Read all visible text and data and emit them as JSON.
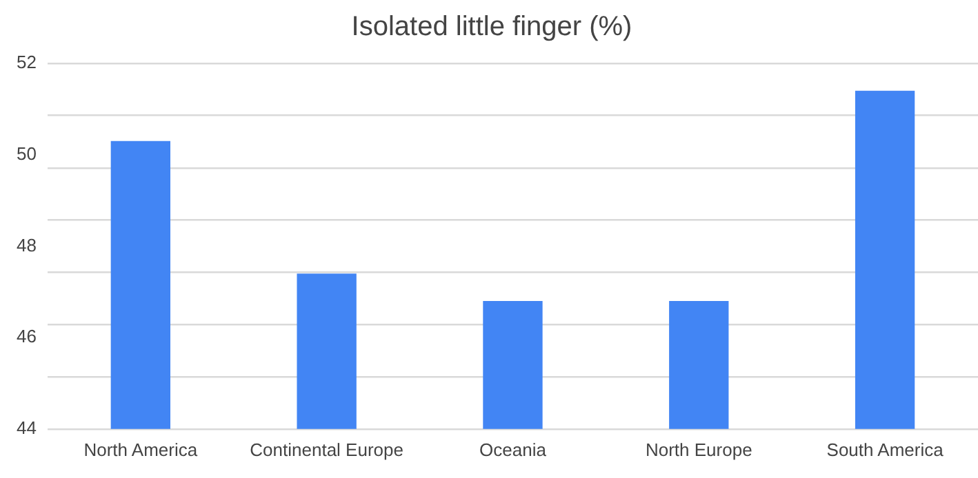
{
  "chart_data": {
    "type": "bar",
    "title": "Isolated little finger (%)",
    "categories": [
      "North America",
      "Continental Europe",
      "Oceania",
      "North Europe",
      "South America"
    ],
    "values": [
      50.3,
      47.4,
      46.8,
      46.8,
      51.4
    ],
    "color": "#4285f4",
    "ylim": [
      44,
      52
    ],
    "yticks": [
      44,
      {
        "value": 45.14,
        "label": null
      },
      46,
      {
        "value": 46.29,
        "label": null
      },
      {
        "value": 47.43,
        "label": null
      },
      48,
      {
        "value": 48.57,
        "label": null
      },
      {
        "value": 49.71,
        "label": null
      },
      50,
      {
        "value": 50.86,
        "label": null
      },
      52
    ],
    "grid": "y",
    "legend": false
  }
}
